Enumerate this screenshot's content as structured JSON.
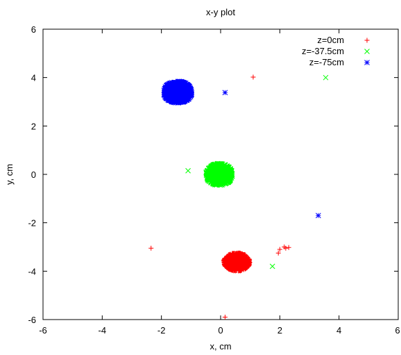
{
  "chart_data": {
    "type": "scatter",
    "title": "x-y plot",
    "xlabel": "x, cm",
    "ylabel": "y, cm",
    "xlim": [
      -6,
      6
    ],
    "ylim": [
      -6,
      6
    ],
    "xticks": [
      "-6",
      "-4",
      "-2",
      "0",
      "2",
      "4",
      "6"
    ],
    "yticks": [
      "6",
      "4",
      "2",
      "0",
      "-2",
      "-4",
      "-6"
    ],
    "grid": false,
    "legend_position": "top-right",
    "series": [
      {
        "name": "z=0cm",
        "marker": "plus",
        "color": "#ff0000",
        "cluster": {
          "cx": 0.55,
          "cy": -3.62,
          "rx": 0.45,
          "ry": 0.38,
          "count": 900
        },
        "outliers": [
          {
            "x": 1.1,
            "y": 4.02
          },
          {
            "x": -2.35,
            "y": -3.05
          },
          {
            "x": 2.0,
            "y": -3.1
          },
          {
            "x": 1.95,
            "y": -3.25
          },
          {
            "x": 2.15,
            "y": -3.0
          },
          {
            "x": 2.2,
            "y": -3.05
          },
          {
            "x": 2.3,
            "y": -3.02
          },
          {
            "x": 0.15,
            "y": -5.9
          },
          {
            "x": 0.1,
            "y": -3.55
          }
        ]
      },
      {
        "name": "z=-37.5cm",
        "marker": "cross",
        "color": "#00ff00",
        "cluster": {
          "cx": -0.05,
          "cy": 0.0,
          "rx": 0.45,
          "ry": 0.45,
          "count": 900
        },
        "outliers": [
          {
            "x": -1.1,
            "y": 0.15
          },
          {
            "x": 3.55,
            "y": 4.0
          },
          {
            "x": 1.75,
            "y": -3.8
          }
        ]
      },
      {
        "name": "z=-75cm",
        "marker": "star",
        "color": "#0000ff",
        "cluster": {
          "cx": -1.45,
          "cy": 3.4,
          "rx": 0.48,
          "ry": 0.45,
          "count": 900
        },
        "outliers": [
          {
            "x": 0.15,
            "y": 3.38
          },
          {
            "x": 3.3,
            "y": -1.7
          }
        ]
      }
    ]
  }
}
